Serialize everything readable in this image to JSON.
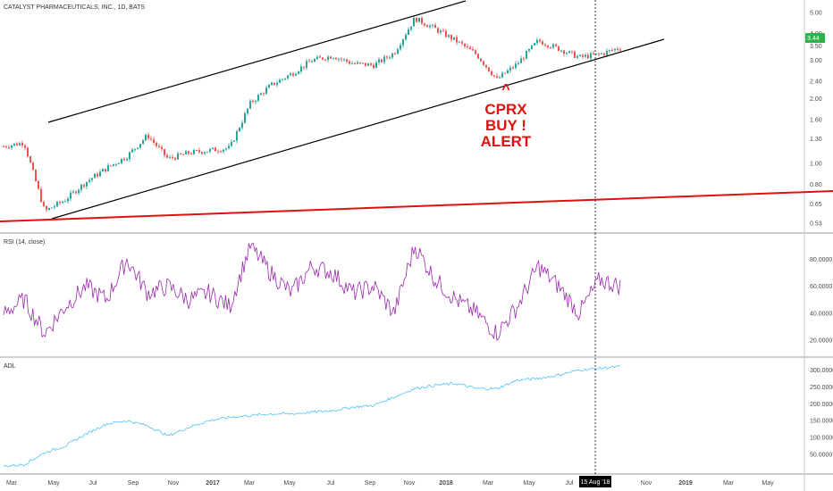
{
  "header": {
    "symbol_title": "CATALYST PHARMACEUTICALS, INC., 1D, BATS"
  },
  "colors": {
    "up_candle": "#26a69a",
    "down_candle": "#ef5350",
    "channel_line": "#000000",
    "support_line": "#e01010",
    "rsi_line": "#9c27b0",
    "adl_line": "#4fc3f7",
    "last_price_badge": "#2cb34a",
    "alert_text": "#e01010"
  },
  "price_pane": {
    "y_scale": "log",
    "y_ticks": [
      "5.00",
      "4.00",
      "3.50",
      "3.00",
      "2.40",
      "2.00",
      "1.60",
      "1.30",
      "1.00",
      "0.80",
      "0.65",
      "0.53"
    ],
    "last_price": "3.44",
    "annotation": {
      "arrow": "^",
      "lines": [
        "CPRX",
        "BUY !",
        "ALERT"
      ]
    }
  },
  "rsi_pane": {
    "title": "RSI (14, close)",
    "y_ticks": [
      "80.0000",
      "60.0000",
      "40.0000",
      "20.0000"
    ]
  },
  "adl_pane": {
    "title": "ADL",
    "y_ticks": [
      "300.0000",
      "250.0000",
      "200.0000",
      "150.0000",
      "100.0000",
      "50.0000"
    ]
  },
  "x_axis": {
    "ticks": [
      "Mar",
      "May",
      "Jul",
      "Sep",
      "Nov",
      "2017",
      "Mar",
      "May",
      "Jul",
      "Sep",
      "Nov",
      "2018",
      "Mar",
      "May",
      "Jul",
      "Nov",
      "2019",
      "Mar",
      "May"
    ],
    "crosshair_label": "15 Aug '18"
  },
  "chart_data": {
    "type": "line",
    "title": "CATALYST PHARMACEUTICALS, INC., 1D, BATS",
    "y_scale": "log",
    "x": [
      "2016-03",
      "2016-04",
      "2016-05",
      "2016-06",
      "2016-07",
      "2016-08",
      "2016-09",
      "2016-10",
      "2016-11",
      "2016-12",
      "2017-01",
      "2017-02",
      "2017-03",
      "2017-04",
      "2017-05",
      "2017-06",
      "2017-07",
      "2017-08",
      "2017-09",
      "2017-10",
      "2017-11",
      "2017-12",
      "2018-01",
      "2018-02",
      "2018-03",
      "2018-04",
      "2018-05",
      "2018-06",
      "2018-07",
      "2018-08",
      "2018-09"
    ],
    "series": [
      {
        "values": [
          1.2,
          1.25,
          0.6,
          0.68,
          0.82,
          0.95,
          1.08,
          1.35,
          1.05,
          1.12,
          1.15,
          1.18,
          1.9,
          2.3,
          2.6,
          3.0,
          3.15,
          2.9,
          2.85,
          3.25,
          4.7,
          4.2,
          3.7,
          3.2,
          2.45,
          2.9,
          3.7,
          3.4,
          3.1,
          3.2,
          3.44
        ]
      },
      {
        "values": [
          40,
          50,
          25,
          45,
          60,
          50,
          80,
          55,
          60,
          50,
          55,
          45,
          90,
          70,
          55,
          75,
          70,
          55,
          60,
          40,
          90,
          65,
          50,
          40,
          25,
          45,
          75,
          60,
          40,
          65,
          60
        ]
      },
      {
        "values": [
          15,
          20,
          55,
          75,
          110,
          140,
          150,
          135,
          105,
          130,
          150,
          160,
          165,
          170,
          170,
          175,
          180,
          190,
          195,
          220,
          245,
          255,
          260,
          245,
          245,
          270,
          275,
          285,
          300,
          305,
          310
        ]
      }
    ],
    "ylim": [
      0.5,
      5.0
    ],
    "annotations": [
      "CPRX",
      "BUY !",
      "ALERT",
      "15 Aug '18"
    ]
  }
}
